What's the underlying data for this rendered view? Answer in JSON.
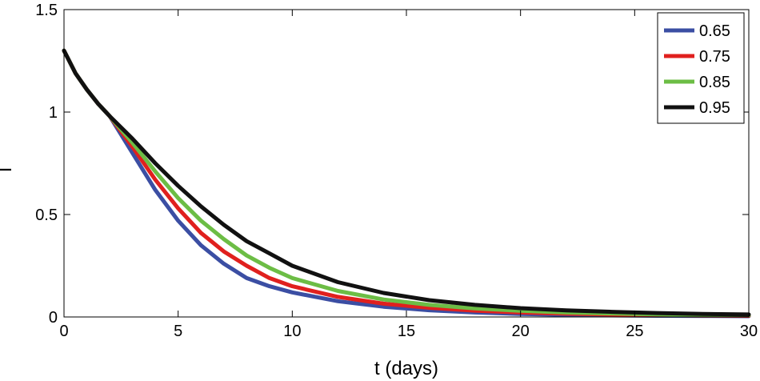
{
  "chart_data": {
    "type": "line",
    "title": "",
    "xlabel": "t (days)",
    "ylabel": "I",
    "xlim": [
      0,
      30
    ],
    "ylim": [
      0,
      1.5
    ],
    "x_ticks": [
      0,
      5,
      10,
      15,
      20,
      25,
      30
    ],
    "y_ticks": [
      0,
      0.5,
      1,
      1.5
    ],
    "x_tick_labels": [
      "0",
      "5",
      "10",
      "15",
      "20",
      "25",
      "30"
    ],
    "y_tick_labels": [
      "0",
      "0.5",
      "1",
      "1.5"
    ],
    "grid": false,
    "legend_position": "top-right",
    "x": [
      0,
      0.5,
      1,
      1.5,
      2,
      3,
      4,
      5,
      6,
      7,
      8,
      9,
      10,
      12,
      14,
      16,
      18,
      20,
      22,
      24,
      26,
      28,
      30
    ],
    "series": [
      {
        "name": "0.65",
        "color": "#3b4ea3",
        "values": [
          1.3,
          1.19,
          1.11,
          1.04,
          0.98,
          0.8,
          0.62,
          0.47,
          0.35,
          0.26,
          0.19,
          0.15,
          0.12,
          0.077,
          0.05,
          0.033,
          0.022,
          0.015,
          0.011,
          0.008,
          0.006,
          0.005,
          0.004
        ]
      },
      {
        "name": "0.75",
        "color": "#e0201e",
        "values": [
          1.3,
          1.19,
          1.11,
          1.04,
          0.98,
          0.83,
          0.67,
          0.53,
          0.41,
          0.32,
          0.25,
          0.19,
          0.15,
          0.098,
          0.065,
          0.045,
          0.031,
          0.022,
          0.016,
          0.012,
          0.009,
          0.007,
          0.006
        ]
      },
      {
        "name": "0.85",
        "color": "#6cbd45",
        "values": [
          1.3,
          1.19,
          1.11,
          1.04,
          0.98,
          0.85,
          0.71,
          0.58,
          0.47,
          0.38,
          0.3,
          0.24,
          0.19,
          0.127,
          0.085,
          0.059,
          0.042,
          0.03,
          0.022,
          0.017,
          0.013,
          0.01,
          0.008
        ]
      },
      {
        "name": "0.95",
        "color": "#111111",
        "values": [
          1.3,
          1.19,
          1.11,
          1.04,
          0.98,
          0.87,
          0.75,
          0.64,
          0.54,
          0.45,
          0.37,
          0.31,
          0.25,
          0.17,
          0.117,
          0.082,
          0.059,
          0.043,
          0.032,
          0.025,
          0.019,
          0.015,
          0.012
        ]
      }
    ]
  }
}
